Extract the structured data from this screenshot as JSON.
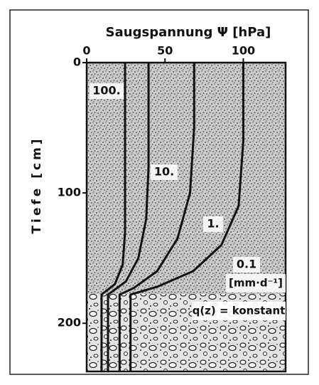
{
  "chart_data": {
    "type": "line",
    "title": "Saugspannung Ψ [hPa]",
    "y_label": "Tiefe [cm]",
    "unit_label": "[mm·d⁻¹]",
    "annotation": "q(z) = konstant",
    "xlim": [
      0,
      127
    ],
    "xticks": [
      0,
      50,
      100
    ],
    "ylim": [
      0,
      237
    ],
    "yticks": [
      0,
      100,
      200
    ],
    "y_inverted": true,
    "series": [
      {
        "name": "100.",
        "color": "#111111",
        "x": [
          24.5,
          24.5,
          23,
          18,
          9.5,
          9.5
        ],
        "values": [
          0,
          130,
          155,
          170,
          178,
          237
        ]
      },
      {
        "name": "10.",
        "color": "#111111",
        "x": [
          39.5,
          39.5,
          38,
          33,
          25,
          13.6,
          13.6
        ],
        "values": [
          0,
          80,
          120,
          150,
          168,
          178,
          237
        ]
      },
      {
        "name": "1.",
        "color": "#111111",
        "x": [
          68.6,
          68.6,
          66,
          58,
          45,
          30,
          21,
          21
        ],
        "values": [
          0,
          50,
          100,
          135,
          160,
          173,
          178,
          237
        ]
      },
      {
        "name": "0.1",
        "color": "#111111",
        "x": [
          100,
          100,
          97,
          86,
          68,
          45,
          28,
          28
        ],
        "values": [
          0,
          60,
          110,
          140,
          160,
          172,
          178,
          237
        ]
      }
    ]
  }
}
